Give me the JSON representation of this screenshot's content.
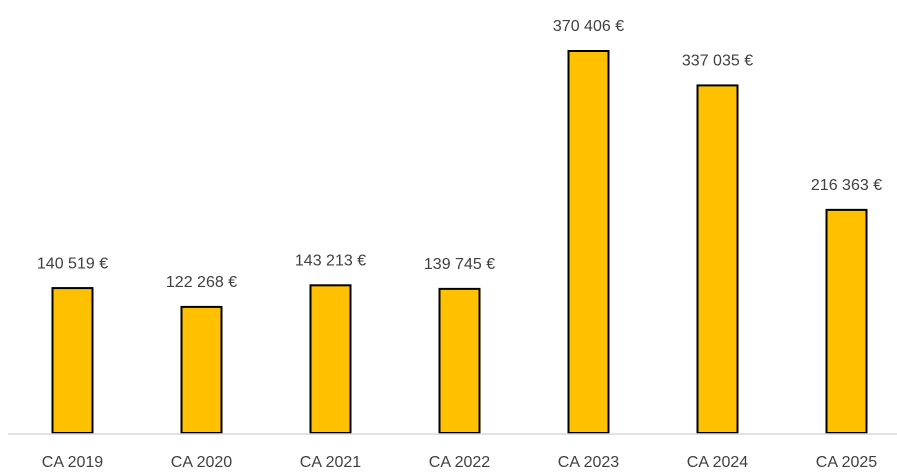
{
  "chart_data": {
    "type": "bar",
    "categories": [
      "CA 2019",
      "CA 2020",
      "CA 2021",
      "CA 2022",
      "CA 2023",
      "CA 2024",
      "CA 2025"
    ],
    "values": [
      140519,
      122268,
      143213,
      139745,
      370406,
      337035,
      216363
    ],
    "value_labels": [
      "140 519 €",
      "122 268 €",
      "143 213 €",
      "139 745 €",
      "370 406 €",
      "337 035 €",
      "216 363 €"
    ],
    "color": "#FFC000"
  }
}
